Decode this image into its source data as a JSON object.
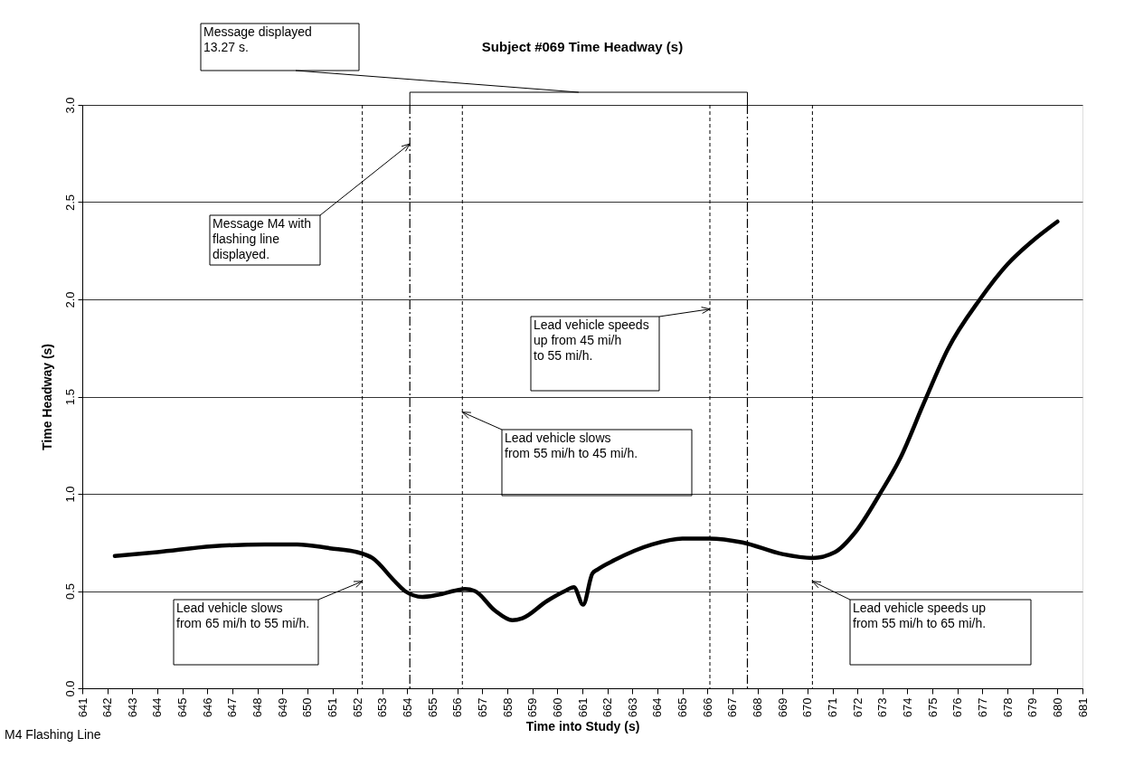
{
  "chart_data": {
    "type": "line",
    "title": "Subject #069 Time Headway (s)",
    "xlabel": "Time into Study (s)",
    "ylabel": "Time Headway (s)",
    "series": [
      {
        "color": "#000000",
        "x": [
          642.3,
          644.0,
          646.2,
          648.3,
          649.6,
          650.9,
          652.0,
          652.6,
          653.5,
          653.9,
          654.6,
          655.2,
          656.3,
          656.7,
          657.5,
          658.2,
          658.6,
          659.6,
          660.3,
          660.66,
          661.03,
          661.4,
          661.6,
          662.3,
          663.8,
          665.0,
          666.06,
          667.4,
          669.0,
          670.2,
          671.1,
          671.9,
          672.9,
          673.7,
          674.7,
          675.6,
          676.9,
          678.0,
          679.0,
          680.0
        ],
        "values": [
          0.68,
          0.7,
          0.73,
          0.74,
          0.74,
          0.72,
          0.7,
          0.67,
          0.55,
          0.5,
          0.47,
          0.48,
          0.51,
          0.5,
          0.4,
          0.35,
          0.36,
          0.45,
          0.5,
          0.52,
          0.43,
          0.59,
          0.61,
          0.66,
          0.74,
          0.77,
          0.77,
          0.75,
          0.69,
          0.67,
          0.7,
          0.8,
          1.0,
          1.18,
          1.48,
          1.74,
          2.0,
          2.18,
          2.3,
          2.4
        ]
      }
    ],
    "xlim": [
      641,
      681
    ],
    "xticks": [
      641,
      642,
      643,
      644,
      645,
      646,
      647,
      648,
      649,
      650,
      651,
      652,
      653,
      654,
      655,
      656,
      657,
      658,
      659,
      660,
      661,
      662,
      663,
      664,
      665,
      666,
      667,
      668,
      669,
      670,
      671,
      672,
      673,
      674,
      675,
      676,
      677,
      678,
      679,
      680,
      681
    ],
    "ylim": [
      0,
      3
    ],
    "yticks": [
      {
        "value": 0,
        "label": "0.0"
      },
      {
        "value": 0.5,
        "label": "0.5"
      },
      {
        "value": 1,
        "label": "1.0"
      },
      {
        "value": 1.5,
        "label": "1.5"
      },
      {
        "value": 2,
        "label": "2.0"
      },
      {
        "value": 2.5,
        "label": "2.5"
      },
      {
        "value": 3,
        "label": "3.0"
      }
    ],
    "grid": "y",
    "marker": "none",
    "line_style": "solid",
    "ref_lines": [
      {
        "axis": "x",
        "value": 652.2,
        "line_style": "dashed"
      },
      {
        "axis": "x",
        "value": 654.1,
        "line_style": "dashdot"
      },
      {
        "axis": "x",
        "value": 656.2,
        "line_style": "dashed"
      },
      {
        "axis": "x",
        "value": 666.1,
        "line_style": "dashed"
      },
      {
        "axis": "x",
        "value": 667.6,
        "line_style": "dashdot"
      },
      {
        "axis": "x",
        "value": 670.2,
        "line_style": "dashed"
      }
    ],
    "annotations": [
      "Message displayed\n13.27 s.",
      {
        "text": "Message M4 with\nflashing line\ndisplayed.",
        "x": 654.1,
        "y": 2.8
      },
      {
        "text": "Lead vehicle speeds\nup from 45 mi/h\nto 55 mi/h.",
        "x": 666.1,
        "y": 1.95
      },
      {
        "text": "Lead vehicle slows\nfrom 55 mi/h to 45 mi/h.",
        "x": 656.2,
        "y": 1.42
      },
      {
        "text": "Lead vehicle slows\nfrom 65 mi/h to 55 mi/h.",
        "x": 652.2,
        "y": 0.55
      },
      {
        "text": "Lead vehicle speeds up\nfrom 55 mi/h to 65 mi/h.",
        "x": 670.2,
        "y": 0.55
      },
      "M4 Flashing Line"
    ]
  }
}
